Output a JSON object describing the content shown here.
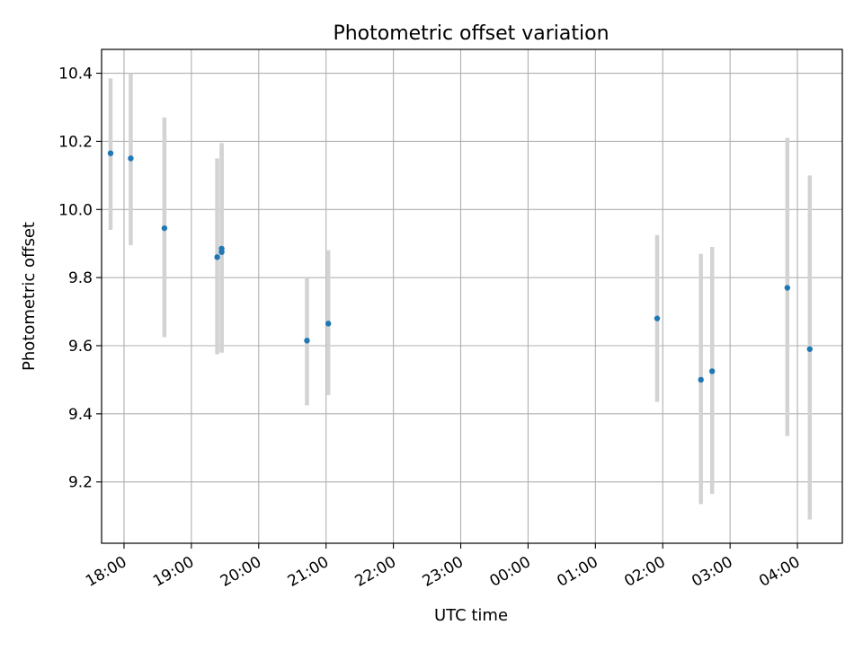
{
  "chart_data": {
    "type": "scatter",
    "title": "Photometric offset variation",
    "xlabel": "UTC time",
    "ylabel": "Photometric offset",
    "x_ticks": [
      "18:00",
      "19:00",
      "20:00",
      "21:00",
      "22:00",
      "23:00",
      "00:00",
      "01:00",
      "02:00",
      "03:00",
      "04:00"
    ],
    "y_ticks": [
      "9.2",
      "9.4",
      "9.6",
      "9.8",
      "10.0",
      "10.2",
      "10.4"
    ],
    "xlim": [
      "17:40",
      "04:40"
    ],
    "ylim": [
      9.02,
      10.47
    ],
    "grid": true,
    "series": [
      {
        "points": [
          {
            "x": "17:48",
            "y": 10.165,
            "err_low": 9.94,
            "err_high": 10.385
          },
          {
            "x": "18:06",
            "y": 10.15,
            "err_low": 9.895,
            "err_high": 10.4
          },
          {
            "x": "18:36",
            "y": 9.945,
            "err_low": 9.625,
            "err_high": 10.27
          },
          {
            "x": "19:23",
            "y": 9.86,
            "err_low": 9.575,
            "err_high": 10.15
          },
          {
            "x": "19:27",
            "y": 9.885,
            "err_low": 9.58,
            "err_high": 10.195
          },
          {
            "x": "19:27",
            "y": 9.875,
            "err_low": 9.58,
            "err_high": 10.18
          },
          {
            "x": "20:43",
            "y": 9.615,
            "err_low": 9.425,
            "err_high": 9.8
          },
          {
            "x": "21:02",
            "y": 9.665,
            "err_low": 9.455,
            "err_high": 9.88
          },
          {
            "x": "01:55",
            "y": 9.68,
            "err_low": 9.435,
            "err_high": 9.925
          },
          {
            "x": "02:34",
            "y": 9.5,
            "err_low": 9.135,
            "err_high": 9.87
          },
          {
            "x": "02:44",
            "y": 9.525,
            "err_low": 9.165,
            "err_high": 9.89
          },
          {
            "x": "03:51",
            "y": 9.77,
            "err_low": 9.335,
            "err_high": 10.21
          },
          {
            "x": "04:11",
            "y": 9.59,
            "err_low": 9.09,
            "err_high": 10.1
          }
        ]
      }
    ],
    "colors": {
      "point": "#1f77b4",
      "errorbar": "#d3d3d3",
      "grid": "#b0b0b0",
      "frame": "#000000"
    }
  }
}
